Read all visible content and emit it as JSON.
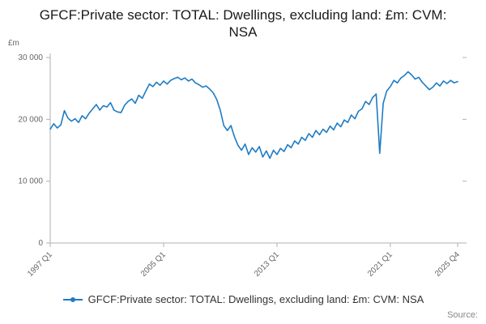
{
  "title": "GFCF:Private sector: TOTAL: Dwellings, excluding land: £m: CVM: NSA",
  "y_axis_unit": "£m",
  "source_label": "Source:",
  "colors": {
    "line": "#1d7cc4",
    "axis": "#b0b0b0",
    "tick_text": "#666666"
  },
  "legend": {
    "label": "GFCF:Private sector: TOTAL: Dwellings, excluding land: £m: CVM: NSA"
  },
  "chart_data": {
    "type": "line",
    "title": "GFCF:Private sector: TOTAL: Dwellings, excluding land: £m: CVM: NSA",
    "ylabel": "£m",
    "frequency": "quarterly",
    "x_start": "1997 Q1",
    "x_end": "2025 Q4",
    "ylim": [
      0,
      30000
    ],
    "y_tick_values": [
      0,
      10000,
      20000,
      30000
    ],
    "y_tick_labels": [
      "0",
      "10 000",
      "20 000",
      "30 000"
    ],
    "x_tick_indices": [
      0,
      32,
      64,
      96,
      115
    ],
    "x_tick_labels": [
      "1997 Q1",
      "2005 Q1",
      "2013 Q1",
      "2021 Q1",
      "2025 Q4"
    ],
    "grid": false,
    "legend_position": "bottom",
    "series": [
      {
        "name": "GFCF:Private sector: TOTAL: Dwellings, excluding land: £m: CVM: NSA",
        "values": [
          18400,
          19300,
          18600,
          19100,
          21400,
          20200,
          19700,
          20100,
          19500,
          20600,
          20100,
          21000,
          21700,
          22400,
          21500,
          22200,
          22000,
          22700,
          21500,
          21200,
          21100,
          22300,
          22900,
          23300,
          22600,
          23900,
          23400,
          24600,
          25700,
          25300,
          26000,
          25500,
          26200,
          25700,
          26300,
          26600,
          26800,
          26400,
          26700,
          26200,
          26500,
          25900,
          25600,
          25200,
          25400,
          24900,
          24300,
          23200,
          21500,
          19000,
          18200,
          19000,
          17200,
          15800,
          15000,
          16000,
          14300,
          15400,
          14700,
          15600,
          13900,
          14900,
          13700,
          15000,
          14300,
          15300,
          14800,
          15900,
          15400,
          16500,
          16000,
          17100,
          16600,
          17700,
          17100,
          18200,
          17500,
          18400,
          17900,
          18900,
          18300,
          19400,
          18800,
          19900,
          19500,
          20700,
          20100,
          21300,
          21700,
          22900,
          22400,
          23500,
          24100,
          14500,
          22600,
          24600,
          25300,
          26300,
          25900,
          26700,
          27100,
          27700,
          27200,
          26500,
          26800,
          26000,
          25400,
          24800,
          25200,
          25900,
          25400,
          26200,
          25800,
          26300,
          25900,
          26100
        ]
      }
    ]
  }
}
